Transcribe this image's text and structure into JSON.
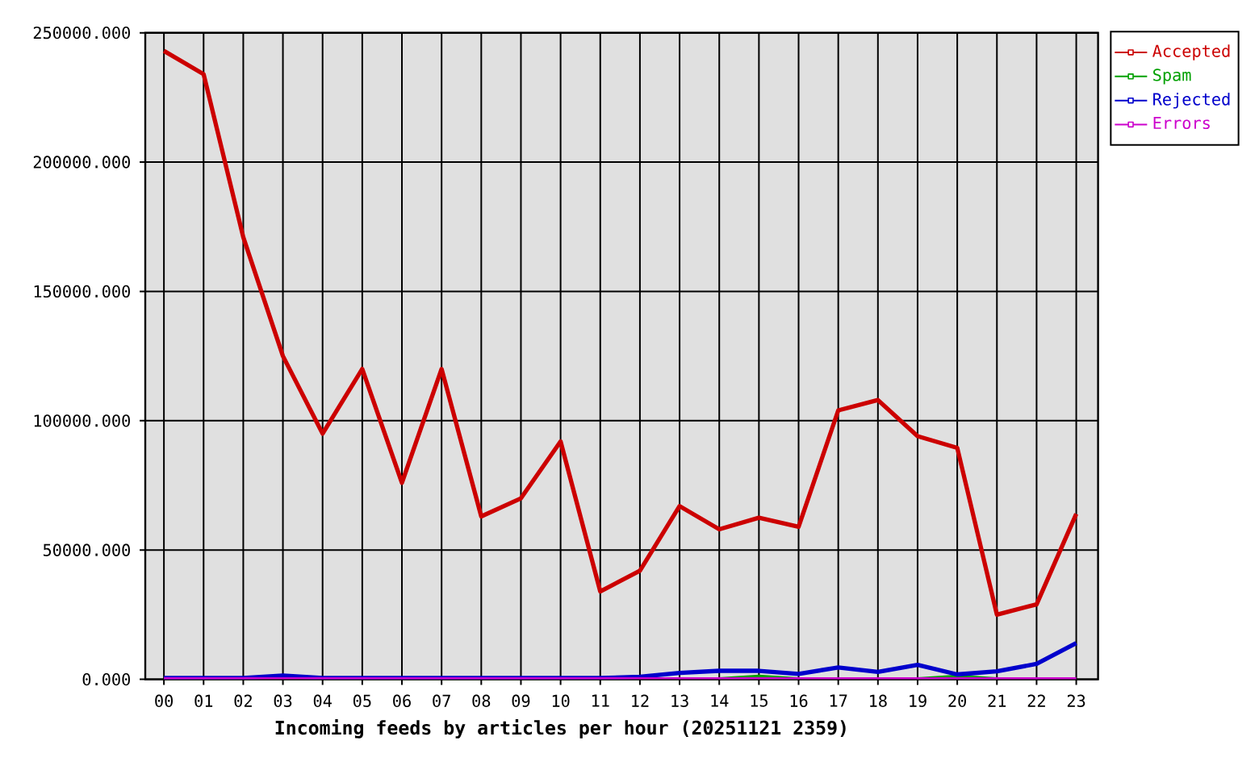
{
  "chart_data": {
    "type": "line",
    "xlabel": "Incoming feeds by articles per hour (20251121 2359)",
    "categories": [
      "00",
      "01",
      "02",
      "03",
      "04",
      "05",
      "06",
      "07",
      "08",
      "09",
      "10",
      "11",
      "12",
      "13",
      "14",
      "15",
      "16",
      "17",
      "18",
      "19",
      "20",
      "21",
      "22",
      "23"
    ],
    "series": [
      {
        "name": "Accepted",
        "color": "#cc0000",
        "values": [
          243000,
          234000,
          171000,
          125000,
          95000,
          120000,
          76000,
          120000,
          63000,
          70000,
          92000,
          34000,
          42000,
          67000,
          58000,
          62500,
          59000,
          104000,
          108000,
          94000,
          89500,
          25000,
          29000,
          64000
        ]
      },
      {
        "name": "Spam",
        "color": "#00a000",
        "values": [
          null,
          null,
          null,
          null,
          null,
          null,
          null,
          null,
          null,
          null,
          null,
          null,
          null,
          null,
          0,
          1000,
          0,
          null,
          null,
          0,
          1000,
          0,
          null,
          null
        ]
      },
      {
        "name": "Rejected",
        "color": "#0000cc",
        "values": [
          500,
          500,
          500,
          1500,
          500,
          500,
          500,
          500,
          500,
          500,
          500,
          500,
          1000,
          2500,
          3300,
          3300,
          2100,
          4600,
          2900,
          5600,
          1900,
          3100,
          6000,
          14000
        ]
      },
      {
        "name": "Errors",
        "color": "#cc00cc",
        "values": [
          0,
          0,
          0,
          0,
          0,
          0,
          0,
          0,
          0,
          0,
          0,
          0,
          0,
          0,
          0,
          0,
          0,
          0,
          0,
          0,
          0,
          0,
          0,
          0
        ]
      }
    ],
    "ylim": [
      0,
      250000
    ],
    "yticks": [
      {
        "value": 0,
        "label": "0.000"
      },
      {
        "value": 50000,
        "label": "50000.000"
      },
      {
        "value": 100000,
        "label": "100000.000"
      },
      {
        "value": 150000,
        "label": "150000.000"
      },
      {
        "value": 200000,
        "label": "200000.000"
      },
      {
        "value": 250000,
        "label": "250000.000"
      }
    ],
    "grid": true,
    "legend": "top right"
  }
}
